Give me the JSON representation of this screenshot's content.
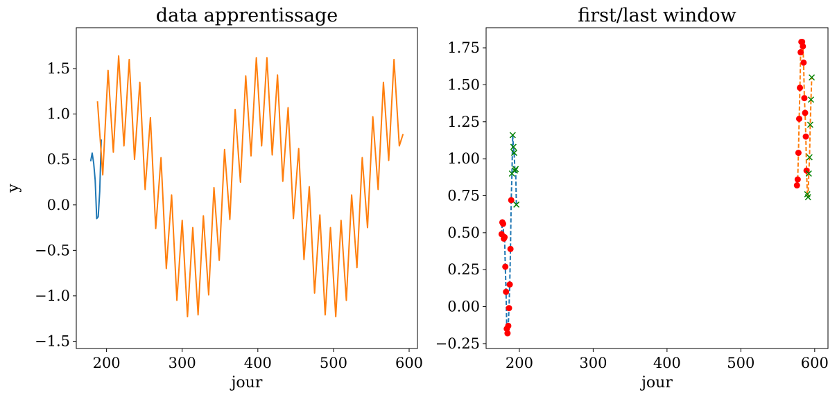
{
  "chart_data": [
    {
      "type": "line",
      "title": "data apprentissage",
      "xlabel": "jour",
      "ylabel": "y",
      "xlim": [
        160,
        611
      ],
      "ylim": [
        -1.58,
        1.95
      ],
      "xticks": [
        200,
        300,
        400,
        500,
        600
      ],
      "yticks": [
        {
          "value": -1.5,
          "label": "−1.5"
        },
        {
          "value": -1.0,
          "label": "−1.0"
        },
        {
          "value": -0.5,
          "label": "−0.5"
        },
        {
          "value": 0,
          "label": "0.0"
        },
        {
          "value": 0.5,
          "label": "0.5"
        },
        {
          "value": 1.0,
          "label": "1.0"
        },
        {
          "value": 1.5,
          "label": "1.5"
        }
      ],
      "series": [
        {
          "color": "#1f77b4",
          "linestyle": "solid",
          "x": [
            179,
            181,
            183,
            185,
            187,
            189,
            191,
            193
          ],
          "values": [
            0.48,
            0.57,
            0.46,
            0.27,
            -0.15,
            -0.13,
            0.15,
            0.72
          ]
        },
        {
          "color": "#ff7f0e",
          "linestyle": "solid",
          "x": [
            188,
            195,
            202,
            209,
            216,
            223,
            230,
            237,
            244,
            251,
            258,
            265,
            272,
            279,
            286,
            293,
            300,
            307,
            314,
            321,
            328,
            335,
            342,
            349,
            356,
            363,
            370,
            377,
            384,
            391,
            398,
            405,
            412,
            419,
            426,
            433,
            440,
            447,
            454,
            461,
            468,
            475,
            482,
            489,
            496,
            503,
            510,
            517,
            524,
            531,
            538,
            545,
            552,
            559,
            566,
            573,
            580,
            587,
            592
          ],
          "values": [
            1.14,
            0.33,
            1.48,
            0.58,
            1.64,
            0.65,
            1.6,
            0.5,
            1.35,
            0.17,
            0.96,
            -0.26,
            0.52,
            -0.7,
            0.11,
            -1.05,
            -0.17,
            -1.23,
            -0.25,
            -1.21,
            -0.12,
            -0.99,
            0.19,
            -0.61,
            0.61,
            -0.16,
            1.05,
            0.25,
            1.42,
            0.54,
            1.62,
            0.65,
            1.62,
            0.55,
            1.43,
            0.26,
            1.07,
            -0.15,
            0.62,
            -0.6,
            0.2,
            -0.97,
            -0.11,
            -1.21,
            -0.25,
            -1.23,
            -0.17,
            -1.05,
            0.11,
            -0.69,
            0.52,
            -0.25,
            0.97,
            0.17,
            1.35,
            0.49,
            1.6,
            0.65,
            0.78
          ]
        }
      ]
    },
    {
      "type": "line",
      "title": "first/last window",
      "xlabel": "jour",
      "xlim": [
        155,
        618
      ],
      "ylim": [
        -0.283,
        1.886
      ],
      "xticks": [
        200,
        300,
        400,
        500,
        600
      ],
      "yticks": [
        {
          "value": -0.25,
          "label": "−0.25"
        },
        {
          "value": 0,
          "label": "0.00"
        },
        {
          "value": 0.25,
          "label": "0.25"
        },
        {
          "value": 0.5,
          "label": "0.50"
        },
        {
          "value": 0.75,
          "label": "0.75"
        },
        {
          "value": 1.0,
          "label": "1.00"
        },
        {
          "value": 1.25,
          "label": "1.25"
        },
        {
          "value": 1.5,
          "label": "1.50"
        },
        {
          "value": 1.75,
          "label": "1.75"
        }
      ],
      "series": [
        {
          "color": "#1f77b4",
          "linestyle": "dashed",
          "x": [
            176,
            177,
            178,
            179,
            180,
            181,
            182,
            183,
            184,
            185,
            186,
            187,
            188,
            189,
            190,
            191,
            192,
            193,
            194,
            195,
            196
          ],
          "values": [
            0.49,
            0.57,
            0.56,
            0.46,
            0.47,
            0.27,
            0.1,
            -0.15,
            -0.18,
            -0.13,
            -0.01,
            0.15,
            0.39,
            0.72,
            0.9,
            1.16,
            1.08,
            1.04,
            0.92,
            0.93,
            0.69
          ]
        },
        {
          "color": "#ff7f0e",
          "linestyle": "dashed",
          "x": [
            576,
            577,
            578,
            579,
            580,
            581,
            582,
            583,
            584,
            585,
            586,
            587,
            588,
            589,
            590,
            591,
            592,
            593,
            594,
            595,
            596
          ],
          "values": [
            0.82,
            0.86,
            1.04,
            1.27,
            1.48,
            1.72,
            1.79,
            1.79,
            1.76,
            1.65,
            1.41,
            1.31,
            1.15,
            0.92,
            0.76,
            0.74,
            0.9,
            1.01,
            1.23,
            1.4,
            1.55
          ]
        },
        {
          "color": "#ff0000",
          "marker": "o",
          "x": [
            176,
            177,
            178,
            179,
            180,
            181,
            182,
            183,
            184,
            185,
            186,
            187,
            188,
            189
          ],
          "values": [
            0.49,
            0.57,
            0.56,
            0.46,
            0.47,
            0.27,
            0.1,
            -0.15,
            -0.18,
            -0.13,
            -0.01,
            0.15,
            0.39,
            0.72
          ]
        },
        {
          "color": "#008000",
          "marker": "x",
          "x": [
            190,
            191,
            192,
            193,
            194,
            195,
            196
          ],
          "values": [
            0.9,
            1.16,
            1.08,
            1.04,
            0.92,
            0.93,
            0.69
          ]
        },
        {
          "color": "#ff0000",
          "marker": "o",
          "x": [
            576,
            577,
            578,
            579,
            580,
            581,
            582,
            583,
            584,
            585,
            586,
            587,
            588,
            589
          ],
          "values": [
            0.82,
            0.86,
            1.04,
            1.27,
            1.48,
            1.72,
            1.79,
            1.79,
            1.76,
            1.65,
            1.41,
            1.31,
            1.15,
            0.92
          ]
        },
        {
          "color": "#008000",
          "marker": "x",
          "x": [
            590,
            591,
            592,
            593,
            594,
            595,
            596
          ],
          "values": [
            0.76,
            0.74,
            0.9,
            1.01,
            1.23,
            1.4,
            1.55
          ]
        }
      ]
    }
  ]
}
